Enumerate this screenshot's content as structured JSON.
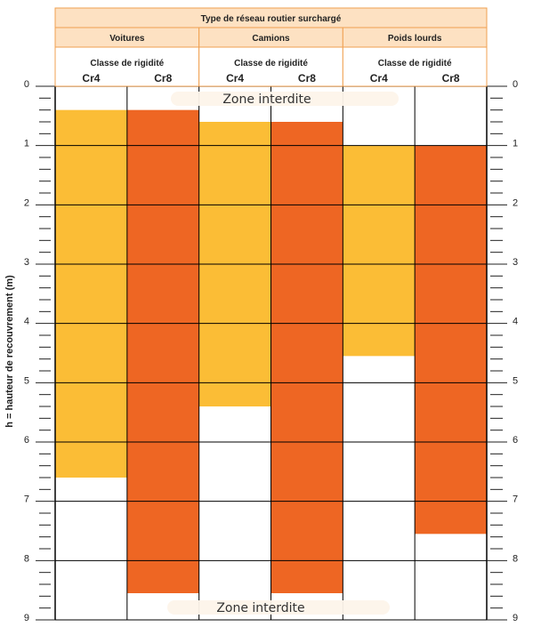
{
  "chart_data": {
    "type": "bar",
    "title": "Type de réseau routier surchargé",
    "ylabel": "h = hauteur de recouvrement (m)",
    "ylim": [
      0,
      9
    ],
    "y_inverted": true,
    "y_ticks": [
      "0",
      "1",
      "2",
      "3",
      "4",
      "5",
      "6",
      "7",
      "8",
      "9"
    ],
    "minor_ticks_per_unit": 5,
    "groups": [
      {
        "label": "Voitures",
        "sublabel": "Classe de rigidité",
        "bars": [
          {
            "category": "Cr4",
            "min": 0.4,
            "max": 6.6,
            "color": "#fbbd36"
          },
          {
            "category": "Cr8",
            "min": 0.4,
            "max": 8.55,
            "color": "#ee6623"
          }
        ]
      },
      {
        "label": "Camions",
        "sublabel": "Classe de rigidité",
        "bars": [
          {
            "category": "Cr4",
            "min": 0.6,
            "max": 5.4,
            "color": "#fbbd36"
          },
          {
            "category": "Cr8",
            "min": 0.6,
            "max": 8.55,
            "color": "#ee6623"
          }
        ]
      },
      {
        "label": "Poids lourds",
        "sublabel": "Classe de rigidité",
        "bars": [
          {
            "category": "Cr4",
            "min": 1.0,
            "max": 4.55,
            "color": "#fbbd36"
          },
          {
            "category": "Cr8",
            "min": 1.0,
            "max": 7.55,
            "color": "#ee6623"
          }
        ]
      }
    ],
    "annotations": [
      {
        "text": "Zone interdite",
        "position": "top"
      },
      {
        "text": "Zone interdite",
        "position": "bottom"
      }
    ],
    "grid": true,
    "colors": {
      "header_bg": "#fde1c2",
      "header_border": "#f0a050",
      "grid": "#000000"
    }
  }
}
